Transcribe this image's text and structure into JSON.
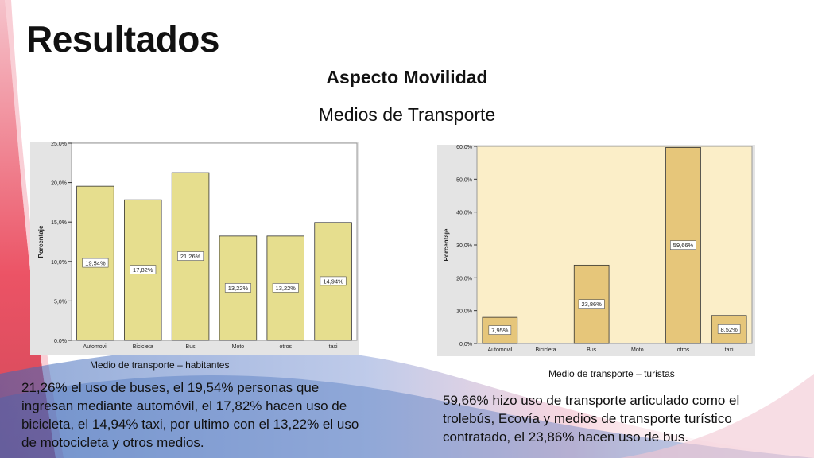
{
  "slide": {
    "title": "Resultados",
    "subtitle": "Aspecto Movilidad",
    "section": "Medios de Transporte"
  },
  "chart_data": [
    {
      "type": "bar",
      "categories": [
        "Automovil",
        "Bicicleta",
        "Bus",
        "Moto",
        "otros",
        "taxi"
      ],
      "values": [
        19.54,
        17.82,
        21.26,
        13.22,
        13.22,
        14.94
      ],
      "data_labels": [
        "19,54%",
        "17,82%",
        "21,26%",
        "13,22%",
        "13,22%",
        "14,94%"
      ],
      "ylabel": "Porcentaje",
      "ylim": [
        0,
        25
      ],
      "yticks": [
        "0,0%",
        "5,0%",
        "10,0%",
        "15,0%",
        "20,0%",
        "25,0%"
      ],
      "caption": "Medio de transporte – habitantes",
      "bar_color": "#e6de8e",
      "plot_background": "#ffffff"
    },
    {
      "type": "bar",
      "categories": [
        "Automovil",
        "Bicicleta",
        "Bus",
        "Moto",
        "otros",
        "taxi"
      ],
      "values": [
        7.95,
        0,
        23.86,
        0,
        59.66,
        8.52
      ],
      "data_labels": [
        "7,95%",
        "",
        "23,86%",
        "",
        "59,66%",
        "8,52%"
      ],
      "ylabel": "Porcentaje",
      "ylim": [
        0,
        60
      ],
      "yticks": [
        "0,0%",
        "10,0%",
        "20,0%",
        "30,0%",
        "40,0%",
        "50,0%",
        "60,0%"
      ],
      "caption": "Medio de transporte – turistas",
      "bar_color": "#e6c67a",
      "plot_background": "#fbeec8"
    }
  ],
  "descriptions": {
    "left": "21,26% el uso de buses, el 19,54% personas que ingresan mediante automóvil, el 17,82% hacen uso de bicicleta, el 14,94%  taxi, por ultimo con el 13,22% el uso de motocicleta y otros medios.",
    "right": "59,66% hizo uso de transporte articulado como el trolebús, Ecovía y medios de transporte turístico contratado, el 23,86% hacen uso de bus."
  },
  "theme": {
    "accent_red": "#e8354a",
    "accent_blue": "#3a66b8"
  }
}
